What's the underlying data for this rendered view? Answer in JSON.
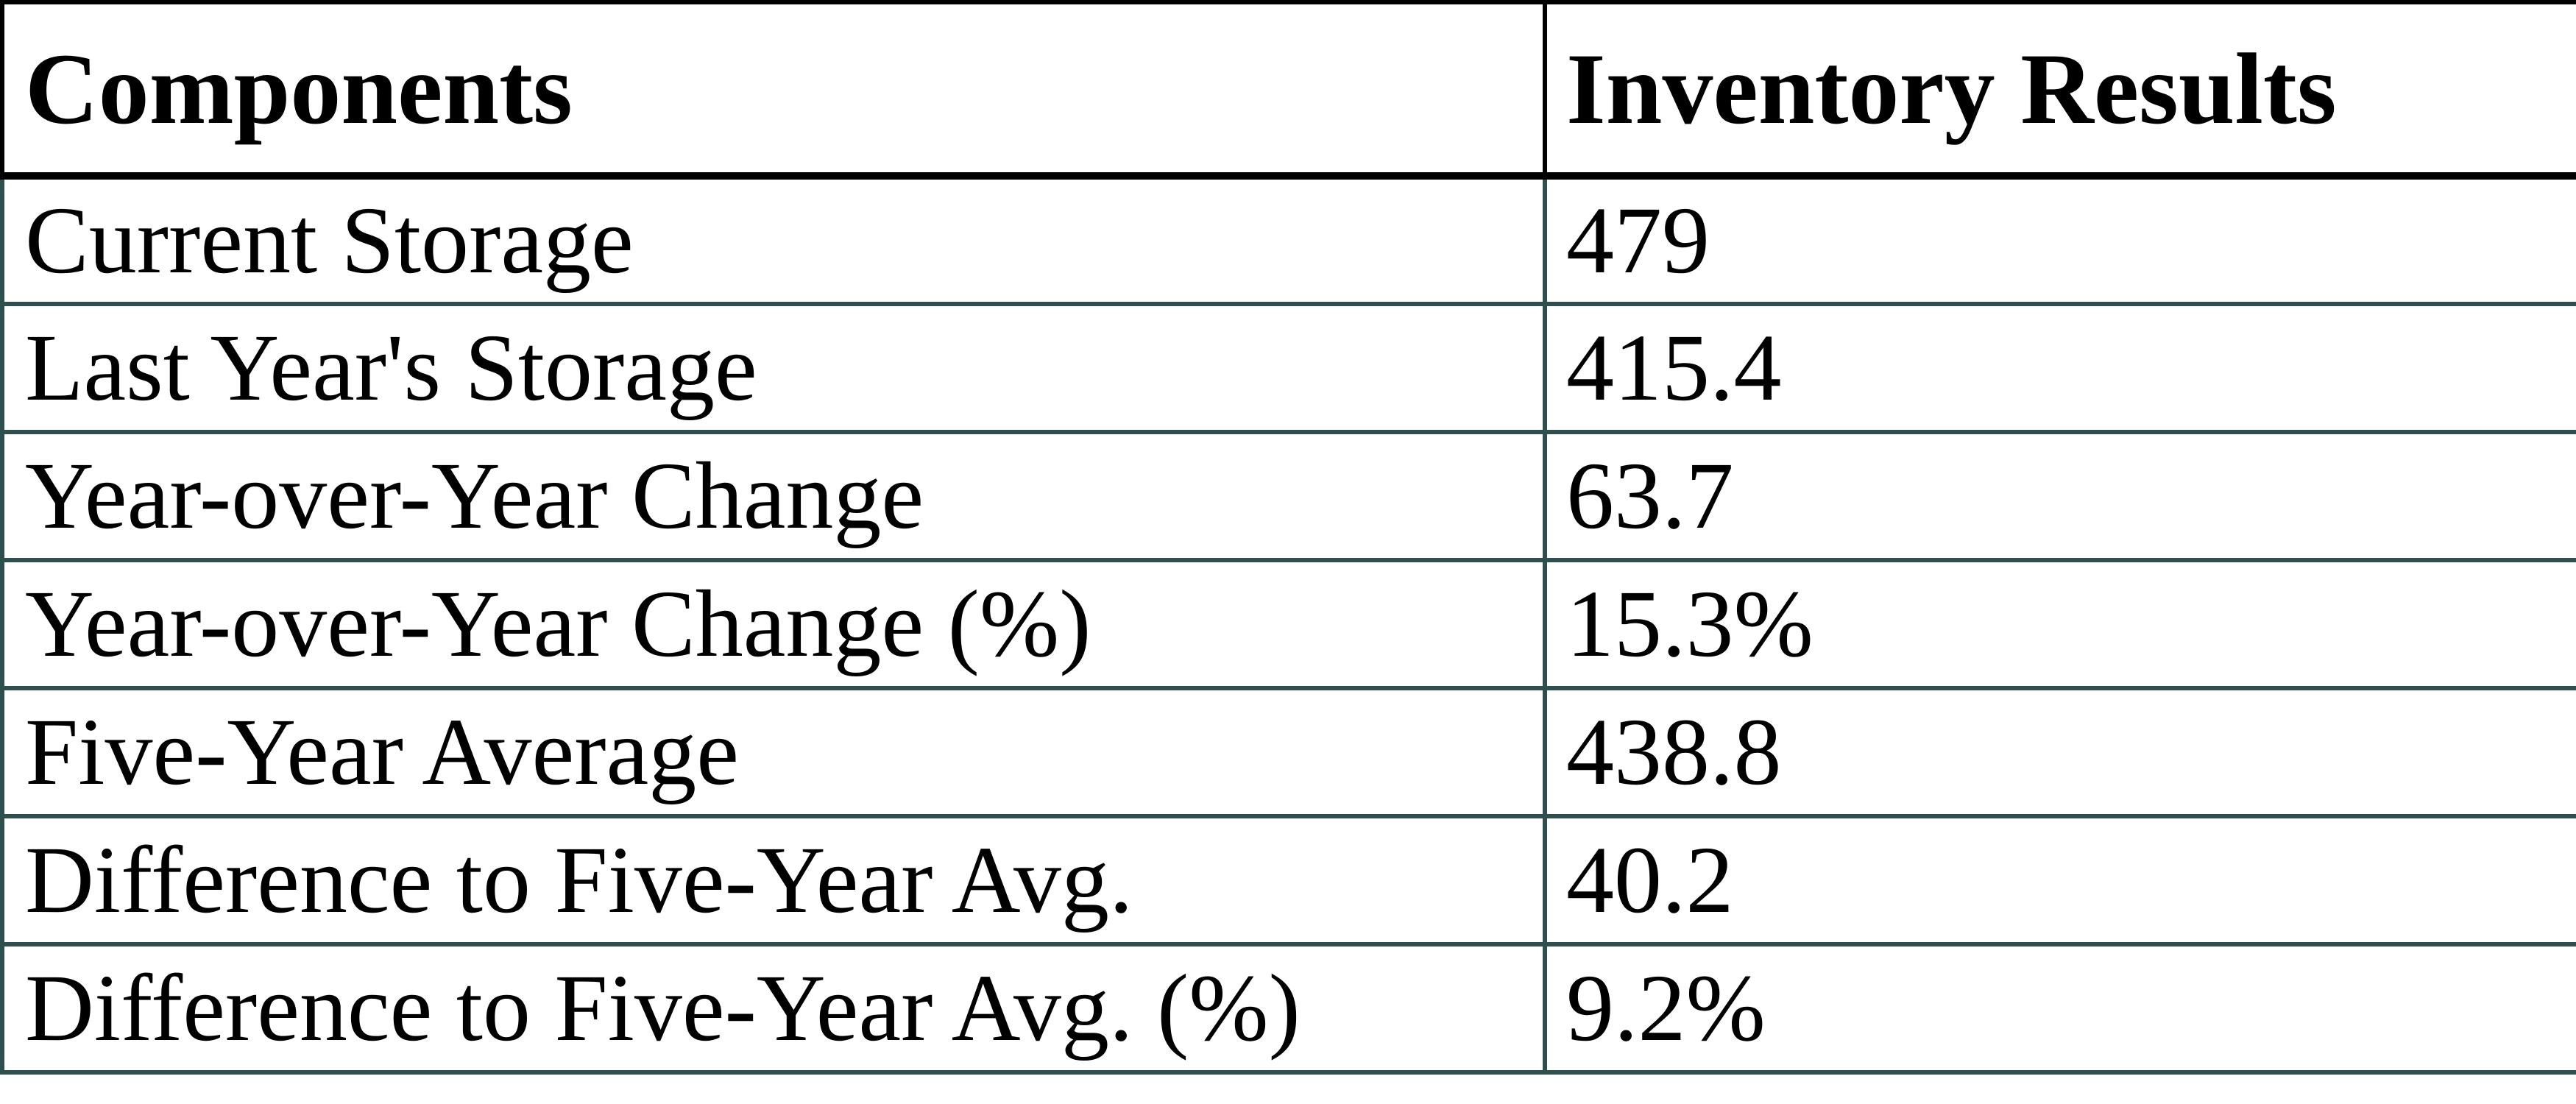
{
  "chart_data": {
    "type": "table",
    "columns": [
      "Components",
      "Inventory Results"
    ],
    "rows": [
      {
        "component": "Current Storage",
        "result": "479"
      },
      {
        "component": "Last Year's Storage",
        "result": "415.4"
      },
      {
        "component": "Year-over-Year Change",
        "result": "63.7"
      },
      {
        "component": "Year-over-Year Change (%)",
        "result": "15.3%"
      },
      {
        "component": "Five-Year Average",
        "result": "438.8"
      },
      {
        "component": "Difference to Five-Year Avg.",
        "result": "40.2"
      },
      {
        "component": "Difference to Five-Year Avg. (%)",
        "result": "9.2%"
      }
    ]
  },
  "colors": {
    "header_border": "#000000",
    "body_border": "#2F4F4F",
    "text": "#000000",
    "background": "#FFFFFF"
  }
}
